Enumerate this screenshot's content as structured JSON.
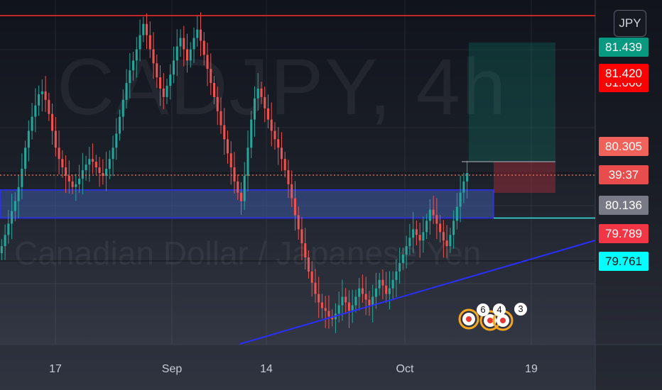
{
  "watermark": {
    "symbol": "CADJPY, 4h",
    "description": "Canadian Dollar / Japanese Yen"
  },
  "currency_button": {
    "label": "JPY"
  },
  "badges": [
    "6",
    "4",
    "3"
  ],
  "colors": {
    "up_candle": "#26a69a",
    "down_candle": "#ef5350",
    "resistance_line": "#ff2b2b",
    "zone_border": "#2a2fff",
    "zone_fill": "#3d5aa0",
    "trendline": "#2a2fff",
    "current_price_line": "#f0755a",
    "target_line": "#3ae6e6"
  },
  "chart_data": {
    "type": "candlestick",
    "symbol": "CADJPY",
    "timeframe": "4h",
    "currency": "JPY",
    "x_ticks": [
      "17",
      "Sep",
      "14",
      "Oct",
      "19"
    ],
    "price_labels": [
      {
        "value": "81.439",
        "color": "#089981"
      },
      {
        "value": "81.420",
        "color": "#ff0000"
      },
      {
        "value": "81.000",
        "color": "#ff0000"
      },
      {
        "value": "80.305",
        "color": "#f0625a"
      },
      {
        "value": "80.136",
        "color": "#787b86"
      },
      {
        "value": "79.789",
        "color": "#f23645"
      },
      {
        "value": "79.761",
        "color": "#00ffff"
      }
    ],
    "countdown": "39:37",
    "horizontal_levels": {
      "resistance": 81.439,
      "zone_top": 80.2,
      "zone_bottom": 80.0,
      "current_price": 80.305,
      "target": 80.0
    },
    "trendline": {
      "from": [
        79.2,
        79.2
      ],
      "to": [
        79.85,
        79.85
      ]
    },
    "price_range": [
      79.1,
      81.55
    ],
    "closes": [
      79.8,
      79.88,
      79.96,
      80.05,
      80.12,
      80.22,
      80.35,
      80.5,
      80.62,
      80.72,
      80.8,
      80.88,
      80.9,
      80.84,
      80.74,
      80.62,
      80.5,
      80.42,
      80.36,
      80.3,
      80.26,
      80.22,
      80.24,
      80.28,
      80.34,
      80.38,
      80.42,
      80.4,
      80.36,
      80.32,
      80.3,
      80.35,
      80.42,
      80.5,
      80.6,
      80.72,
      80.84,
      80.96,
      81.05,
      81.12,
      81.2,
      81.3,
      81.38,
      81.3,
      81.2,
      81.1,
      81.0,
      80.92,
      80.86,
      80.94,
      81.02,
      81.12,
      81.22,
      81.28,
      81.2,
      81.12,
      81.2,
      81.28,
      81.34,
      81.26,
      81.16,
      81.06,
      80.96,
      80.86,
      80.76,
      80.66,
      80.56,
      80.46,
      80.36,
      80.26,
      80.18,
      80.12,
      80.3,
      80.5,
      80.7,
      80.85,
      80.92,
      80.86,
      80.78,
      80.7,
      80.62,
      80.56,
      80.5,
      80.42,
      80.34,
      80.24,
      80.14,
      80.02,
      79.92,
      79.82,
      79.72,
      79.62,
      79.54,
      79.46,
      79.4,
      79.36,
      79.34,
      79.3,
      79.28,
      79.32,
      79.38,
      79.44,
      79.4,
      79.34,
      79.38,
      79.44,
      79.5,
      79.46,
      79.42,
      79.38,
      79.44,
      79.5,
      79.56,
      79.52,
      79.46,
      79.5,
      79.56,
      79.62,
      79.68,
      79.74,
      79.8,
      79.86,
      79.92,
      79.88,
      79.84,
      79.9,
      79.98,
      80.06,
      80.02,
      79.96,
      79.9,
      79.84,
      79.8,
      79.88,
      79.98,
      80.08,
      80.18,
      80.26,
      80.32
    ]
  }
}
